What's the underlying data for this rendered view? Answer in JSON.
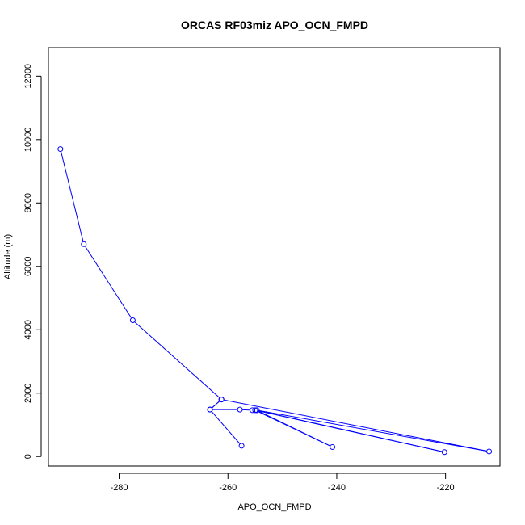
{
  "chart_data": {
    "type": "line",
    "title": "ORCAS RF03miz APO_OCN_FMPD",
    "xlabel": "APO_OCN_FMPD",
    "ylabel": "Altitude (m)",
    "xlim": [
      -293,
      -210
    ],
    "ylim": [
      -300,
      12900
    ],
    "x_ticks": [
      -280,
      -260,
      -240,
      -220
    ],
    "y_ticks": [
      0,
      2000,
      4000,
      6000,
      8000,
      10000,
      12000
    ],
    "series_color": "#0000ff",
    "marker": "open-circle",
    "grid": false,
    "legend": "none",
    "series": [
      {
        "x": [
          -290.8,
          -286.5,
          -277.5,
          -261.2,
          -263.3,
          -257.8,
          -255.5,
          -254.7,
          -240.8,
          -255.0,
          -220.2,
          -254.7,
          -212.0,
          -261.2,
          -263.3,
          -257.5
        ],
        "y": [
          9700,
          6700,
          4300,
          1800,
          1480,
          1480,
          1460,
          1460,
          300,
          1460,
          140,
          1460,
          160,
          1800,
          1480,
          340
        ]
      }
    ]
  }
}
